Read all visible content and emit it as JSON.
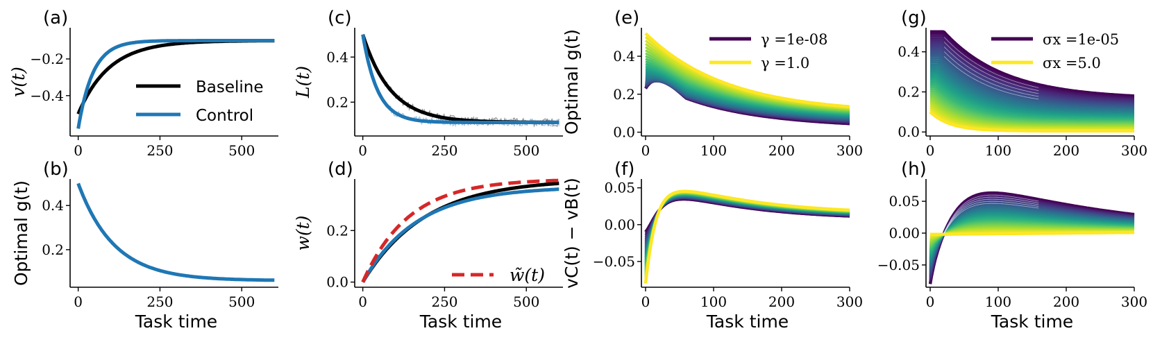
{
  "chart_data": [
    {
      "id": "a",
      "type": "line",
      "panel_label": "(a)",
      "ylabel": "v(t)",
      "xlabel": "",
      "xlim": [
        -12,
        612
      ],
      "ylim": [
        -0.62,
        -0.03
      ],
      "xticks": [
        0,
        250,
        500
      ],
      "xtick_labels": [
        "0",
        "250",
        "500"
      ],
      "yticks": [
        -0.2,
        -0.4
      ],
      "ytick_labels": [
        "−0.2",
        "−0.4"
      ],
      "legend": {
        "position": "center-right",
        "entries": [
          "Baseline",
          "Control"
        ]
      },
      "series": [
        {
          "name": "Baseline",
          "color": "#000000",
          "kind": "exp",
          "x0": 0,
          "y0": -0.5,
          "yinf": -0.1,
          "tau": 95
        },
        {
          "name": "Control",
          "color": "#1f77b4",
          "kind": "expc",
          "x0": 0,
          "y0": -0.58,
          "yinf": -0.1,
          "tau": 45,
          "dip": 0.0
        }
      ]
    },
    {
      "id": "b",
      "type": "line",
      "panel_label": "(b)",
      "ylabel": "Optimal g(t)",
      "xlabel": "Task time",
      "xlim": [
        -12,
        612
      ],
      "ylim": [
        0.03,
        0.52
      ],
      "xticks": [
        0,
        250,
        500
      ],
      "xtick_labels": [
        "0",
        "250",
        "500"
      ],
      "yticks": [
        0.4,
        0.2
      ],
      "ytick_labels": [
        "0.4",
        "0.2"
      ],
      "series": [
        {
          "color": "#1f77b4",
          "kind": "exp",
          "x0": 0,
          "y0": 0.5,
          "yinf": 0.06,
          "tau": 110
        }
      ]
    },
    {
      "id": "c",
      "type": "line",
      "panel_label": "(c)",
      "ylabel": "L(t)",
      "xlabel": "",
      "xlim": [
        -12,
        612
      ],
      "ylim": [
        0.05,
        0.53
      ],
      "xticks": [
        0,
        250,
        500
      ],
      "xtick_labels": [
        "0",
        "250",
        "500"
      ],
      "yticks": [
        0.4,
        0.2
      ],
      "ytick_labels": [
        "0.4",
        "0.2"
      ],
      "series": [
        {
          "name": "Baseline (noisy)",
          "color": "#7f7f7f",
          "kind": "exp",
          "x0": 0,
          "y0": 0.5,
          "yinf": 0.11,
          "tau": 85,
          "noise": 0.018
        },
        {
          "name": "Control (noisy)",
          "color": "#8fb8dc",
          "kind": "exp",
          "x0": 0,
          "y0": 0.5,
          "yinf": 0.11,
          "tau": 45,
          "noise": 0.016
        },
        {
          "name": "Baseline",
          "color": "#000000",
          "kind": "exp",
          "x0": 0,
          "y0": 0.5,
          "yinf": 0.11,
          "tau": 85
        },
        {
          "name": "Control",
          "color": "#1f77b4",
          "kind": "exp",
          "x0": 0,
          "y0": 0.5,
          "yinf": 0.11,
          "tau": 45
        }
      ]
    },
    {
      "id": "d",
      "type": "line",
      "panel_label": "(d)",
      "ylabel": "w(t)",
      "xlabel": "Task time",
      "xlim": [
        -12,
        612
      ],
      "ylim": [
        -0.02,
        0.4
      ],
      "xticks": [
        0,
        250,
        500
      ],
      "xtick_labels": [
        "0",
        "250",
        "500"
      ],
      "yticks": [
        0.0,
        0.2
      ],
      "ytick_labels": [
        "0.0",
        "0.2"
      ],
      "legend": {
        "position": "bottom-right",
        "entries": [
          "w̃(t)"
        ]
      },
      "series": [
        {
          "name": "Baseline",
          "color": "#000000",
          "kind": "exp",
          "x0": 0,
          "y0": 0.0,
          "yinf": 0.4,
          "tau": 190
        },
        {
          "name": "Control",
          "color": "#1f77b4",
          "kind": "exp",
          "x0": 0,
          "y0": 0.0,
          "yinf": 0.37,
          "tau": 165
        },
        {
          "name": "w̃(t)",
          "color": "#d62728",
          "kind": "exp",
          "x0": 0,
          "y0": 0.0,
          "yinf": 0.4,
          "tau": 140,
          "dashed": true
        }
      ]
    },
    {
      "id": "e",
      "type": "line",
      "panel_label": "(e)",
      "ylabel": "Optimal g(t)",
      "xlabel": "",
      "xlim": [
        0,
        300
      ],
      "ylim": [
        -0.02,
        0.55
      ],
      "xticks": [
        0,
        100,
        200,
        300
      ],
      "xtick_labels": [
        "0",
        "100",
        "200",
        "300"
      ],
      "yticks": [
        0.4,
        0.2,
        0.0
      ],
      "ytick_labels": [
        "0.4",
        "0.2",
        "0.0"
      ],
      "legend": {
        "position": "top-right",
        "entries": [
          "γ =1e-08",
          "γ =1.0"
        ]
      },
      "family": {
        "count": 30,
        "colormap": "viridis",
        "kind": "g_gamma"
      }
    },
    {
      "id": "f",
      "type": "line",
      "panel_label": "(f)",
      "ylabel": "vC(t) − vB(t)",
      "xlabel": "Task time",
      "xlim": [
        0,
        300
      ],
      "ylim": [
        -0.085,
        0.062
      ],
      "xticks": [
        0,
        100,
        200,
        300
      ],
      "xtick_labels": [
        "0",
        "100",
        "200",
        "300"
      ],
      "yticks": [
        0.05,
        0.0,
        -0.05
      ],
      "ytick_labels": [
        "0.05",
        "0.00",
        "−0.05"
      ],
      "family": {
        "count": 30,
        "colormap": "viridis",
        "kind": "v_gamma"
      }
    },
    {
      "id": "g",
      "type": "line",
      "panel_label": "(g)",
      "ylabel": "",
      "xlabel": "",
      "xlim": [
        0,
        300
      ],
      "ylim": [
        -0.02,
        0.52
      ],
      "xticks": [
        0,
        100,
        200,
        300
      ],
      "xtick_labels": [
        "0",
        "100",
        "200",
        "300"
      ],
      "yticks": [
        0.4,
        0.2,
        0.0
      ],
      "ytick_labels": [
        "0.4",
        "0.2",
        "0.0"
      ],
      "legend": {
        "position": "top-right",
        "entries": [
          "σx =1e-05",
          "σx =5.0"
        ]
      },
      "family": {
        "count": 40,
        "colormap": "viridis",
        "kind": "g_sigma"
      }
    },
    {
      "id": "h",
      "type": "line",
      "panel_label": "(h)",
      "ylabel": "",
      "xlabel": "Task time",
      "xlim": [
        0,
        300
      ],
      "ylim": [
        -0.085,
        0.085
      ],
      "xticks": [
        0,
        100,
        200,
        300
      ],
      "xtick_labels": [
        "0",
        "100",
        "200",
        "300"
      ],
      "yticks": [
        0.05,
        0.0,
        -0.05
      ],
      "ytick_labels": [
        "0.05",
        "0.00",
        "−0.05"
      ],
      "family": {
        "count": 40,
        "colormap": "viridis",
        "kind": "v_sigma"
      }
    }
  ],
  "labels": {
    "a": "(a)",
    "b": "(b)",
    "c": "(c)",
    "d": "(d)",
    "e": "(e)",
    "f": "(f)",
    "g": "(g)",
    "h": "(h)",
    "task_time": "Task time",
    "v_t": "v(t)",
    "opt_g": "Optimal g(t)",
    "L_t": "L(t)",
    "w_t": "w(t)",
    "vc_vb": "vC(t) − vB(t)",
    "baseline": "Baseline",
    "control": "Control",
    "w_tilde": "w̃(t)",
    "gamma_lo": "γ =1e-08",
    "gamma_hi": "γ =1.0",
    "sigma_lo": "σx =1e-05",
    "sigma_hi": "σx =5.0"
  },
  "colors": {
    "baseline": "#000000",
    "control": "#1f77b4",
    "w_tilde": "#d62728",
    "viridis_start": "#440154",
    "viridis_end": "#fde725"
  }
}
